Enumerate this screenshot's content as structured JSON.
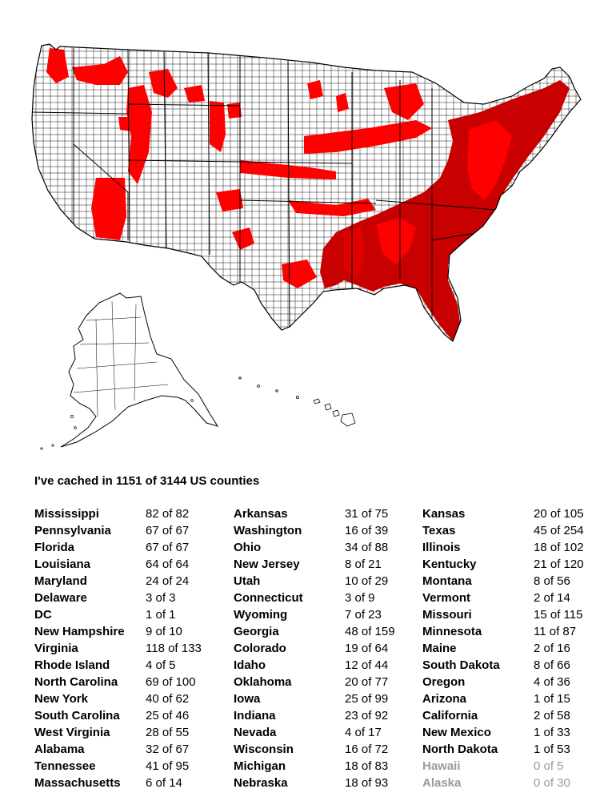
{
  "summary": "I've cached in 1151 of 3144 US counties",
  "colors": {
    "cached": "#ff0000",
    "cached_dark": "#c00000",
    "uncached": "#ffffff",
    "border": "#000000",
    "muted_text": "#9a9a9a"
  },
  "columns": [
    [
      {
        "state": "Mississippi",
        "count": "82 of 82"
      },
      {
        "state": "Pennsylvania",
        "count": "67 of 67"
      },
      {
        "state": "Florida",
        "count": "67 of 67"
      },
      {
        "state": "Louisiana",
        "count": "64 of 64"
      },
      {
        "state": "Maryland",
        "count": "24 of 24"
      },
      {
        "state": "Delaware",
        "count": "3 of 3"
      },
      {
        "state": "DC",
        "count": "1 of 1"
      },
      {
        "state": "New Hampshire",
        "count": "9 of 10"
      },
      {
        "state": "Virginia",
        "count": "118 of 133"
      },
      {
        "state": "Rhode Island",
        "count": "4 of 5"
      },
      {
        "state": "North Carolina",
        "count": "69 of 100"
      },
      {
        "state": "New York",
        "count": "40 of 62"
      },
      {
        "state": "South Carolina",
        "count": "25 of 46"
      },
      {
        "state": "West Virginia",
        "count": "28 of 55"
      },
      {
        "state": "Alabama",
        "count": "32 of 67"
      },
      {
        "state": "Tennessee",
        "count": "41 of 95"
      },
      {
        "state": "Massachusetts",
        "count": "6 of 14"
      }
    ],
    [
      {
        "state": "Arkansas",
        "count": "31 of 75"
      },
      {
        "state": "Washington",
        "count": "16 of 39"
      },
      {
        "state": "Ohio",
        "count": "34 of 88"
      },
      {
        "state": "New Jersey",
        "count": "8 of 21"
      },
      {
        "state": "Utah",
        "count": "10 of 29"
      },
      {
        "state": "Connecticut",
        "count": "3 of 9"
      },
      {
        "state": "Wyoming",
        "count": "7 of 23"
      },
      {
        "state": "Georgia",
        "count": "48 of 159"
      },
      {
        "state": "Colorado",
        "count": "19 of 64"
      },
      {
        "state": "Idaho",
        "count": "12 of 44"
      },
      {
        "state": "Oklahoma",
        "count": "20 of 77"
      },
      {
        "state": "Iowa",
        "count": "25 of 99"
      },
      {
        "state": "Indiana",
        "count": "23 of 92"
      },
      {
        "state": "Nevada",
        "count": "4 of 17"
      },
      {
        "state": "Wisconsin",
        "count": "16 of 72"
      },
      {
        "state": "Michigan",
        "count": "18 of 83"
      },
      {
        "state": "Nebraska",
        "count": "18 of 93"
      }
    ],
    [
      {
        "state": "Kansas",
        "count": "20 of 105"
      },
      {
        "state": "Texas",
        "count": "45 of 254"
      },
      {
        "state": "Illinois",
        "count": "18 of 102"
      },
      {
        "state": "Kentucky",
        "count": "21 of 120"
      },
      {
        "state": "Montana",
        "count": "8 of 56"
      },
      {
        "state": "Vermont",
        "count": "2 of 14"
      },
      {
        "state": "Missouri",
        "count": "15 of 115"
      },
      {
        "state": "Minnesota",
        "count": "11 of 87"
      },
      {
        "state": "Maine",
        "count": "2 of 16"
      },
      {
        "state": "South Dakota",
        "count": "8 of 66"
      },
      {
        "state": "Oregon",
        "count": "4 of 36"
      },
      {
        "state": "Arizona",
        "count": "1 of 15"
      },
      {
        "state": "California",
        "count": "2 of 58"
      },
      {
        "state": "New Mexico",
        "count": "1 of 33"
      },
      {
        "state": "North Dakota",
        "count": "1 of 53"
      },
      {
        "state": "Hawaii",
        "count": "0 of 5",
        "muted": true
      },
      {
        "state": "Alaska",
        "count": "0 of 30",
        "muted": true
      }
    ]
  ]
}
